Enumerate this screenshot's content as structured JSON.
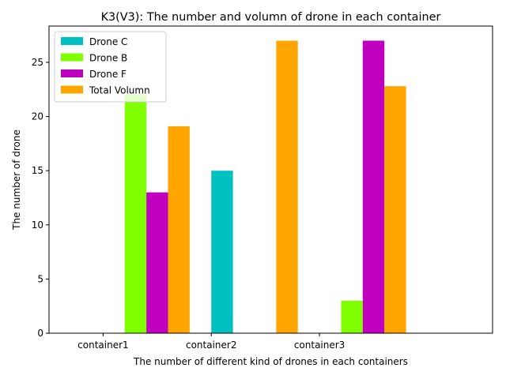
{
  "chart_data": {
    "type": "bar",
    "title": "K3(V3): The number and volumn of drone in each container",
    "xlabel": "The number of different kind of drones in each containers",
    "ylabel": "The number of drone",
    "x_tick_labels": [
      "container1",
      "container2",
      "container3"
    ],
    "y_ticks": [
      0,
      5,
      10,
      15,
      20,
      25
    ],
    "ylim": [
      0,
      28.35
    ],
    "legend_position": "upper-left",
    "series": [
      {
        "name": "Drone C",
        "color": "#00c0c0",
        "values": [
          0,
          15,
          0
        ]
      },
      {
        "name": "Drone B",
        "color": "#7fff00",
        "values": [
          22,
          0,
          3
        ]
      },
      {
        "name": "Drone F",
        "color": "#bf00bf",
        "values": [
          13,
          0,
          27
        ]
      },
      {
        "name": "Total Volumn",
        "color": "#ffa500",
        "values": [
          19.1,
          27,
          22.8
        ]
      }
    ]
  }
}
